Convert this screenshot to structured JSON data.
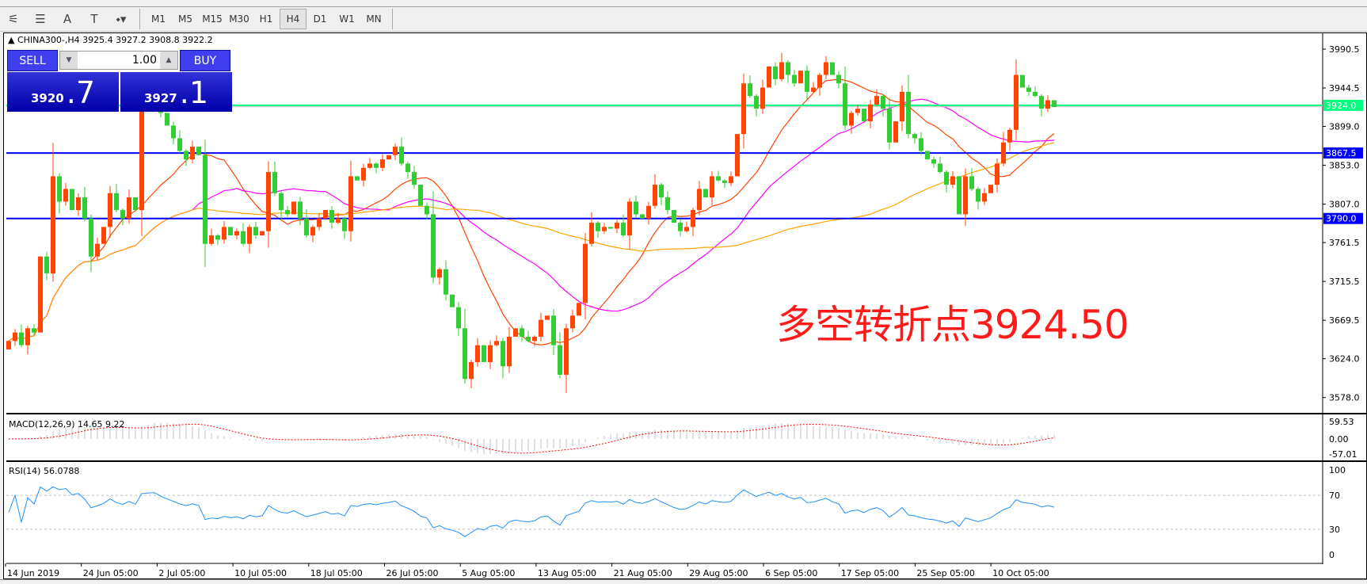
{
  "toolbar": {
    "icons": [
      "elliott-wave-icon",
      "fibonacci-icon",
      "text-icon",
      "text-label-icon",
      "arrows-dropdown-icon"
    ],
    "icon_glyphs": [
      "⚟",
      "☰",
      "A",
      "T",
      "⬩▾"
    ],
    "timeframes": [
      "M1",
      "M5",
      "M15",
      "M30",
      "H1",
      "H4",
      "D1",
      "W1",
      "MN"
    ],
    "active_timeframe": "H4"
  },
  "chart": {
    "header": "▲ CHINA300-,H4  3925.4 3927.2 3908.8 3922.2",
    "annotation": "多空转折点3924.50",
    "colors": {
      "up": "#ff4500",
      "down": "#32cd32",
      "ma_fast": "#ff4500",
      "ma_mid": "#ff00ff",
      "ma_slow": "#ffa500",
      "hline_green": "#00ff7f",
      "hline_blue": "#0000ff",
      "rsi": "#1e90ff",
      "macd_signal": "#ff0000",
      "macd_hist": "#c0c0c0"
    }
  },
  "trade_panel": {
    "sell_label": "SELL",
    "buy_label": "BUY",
    "lot": "1.00",
    "bid_main": "3920",
    "bid_big": ".7",
    "ask_main": "3927",
    "ask_big": ".1"
  },
  "chart_data": {
    "type": "candlestick",
    "symbol": "CHINA300-",
    "timeframe": "H4",
    "closes": [
      3645,
      3655,
      3640,
      3660,
      3655,
      3745,
      3725,
      3840,
      3810,
      3825,
      3800,
      3815,
      3790,
      3745,
      3760,
      3780,
      3820,
      3800,
      3790,
      3815,
      3800,
      3920,
      3930,
      3935,
      3915,
      3900,
      3885,
      3870,
      3860,
      3875,
      3865,
      3760,
      3770,
      3765,
      3780,
      3770,
      3775,
      3760,
      3780,
      3770,
      3775,
      3845,
      3820,
      3800,
      3795,
      3810,
      3790,
      3770,
      3780,
      3790,
      3800,
      3785,
      3790,
      3775,
      3840,
      3835,
      3850,
      3855,
      3850,
      3860,
      3865,
      3875,
      3855,
      3845,
      3830,
      3805,
      3795,
      3720,
      3730,
      3700,
      3685,
      3660,
      3600,
      3620,
      3640,
      3620,
      3640,
      3645,
      3615,
      3650,
      3660,
      3650,
      3645,
      3650,
      3670,
      3675,
      3640,
      3605,
      3660,
      3675,
      3690,
      3760,
      3785,
      3775,
      3780,
      3778,
      3785,
      3770,
      3810,
      3795,
      3790,
      3805,
      3830,
      3815,
      3800,
      3785,
      3775,
      3780,
      3800,
      3825,
      3815,
      3840,
      3835,
      3832,
      3840,
      3890,
      3950,
      3935,
      3920,
      3945,
      3970,
      3955,
      3975,
      3960,
      3950,
      3965,
      3940,
      3945,
      3960,
      3975,
      3960,
      3950,
      3900,
      3915,
      3920,
      3905,
      3925,
      3935,
      3920,
      3880,
      3905,
      3940,
      3890,
      3885,
      3870,
      3860,
      3855,
      3845,
      3830,
      3840,
      3795,
      3840,
      3825,
      3810,
      3820,
      3830,
      3855,
      3880,
      3895,
      3960,
      3945,
      3940,
      3935,
      3920,
      3930,
      3922
    ],
    "price_axis": [
      "3990.5",
      "3944.5",
      "3899.0",
      "3853.0",
      "3807.0",
      "3761.5",
      "3715.5",
      "3669.5",
      "3624.0",
      "3578.0"
    ],
    "price_axis_values": [
      3990.5,
      3944.5,
      3899.0,
      3853.0,
      3807.0,
      3761.5,
      3715.5,
      3669.5,
      3624.0,
      3578.0
    ],
    "hlines": [
      {
        "price": 3924.0,
        "label": "3924.0",
        "color": "#00ff7f"
      },
      {
        "price": 3867.5,
        "label": "3867.5",
        "color": "#0000ff"
      },
      {
        "price": 3790.0,
        "label": "3790.0",
        "color": "#0000ff"
      }
    ],
    "time_axis": [
      "14 Jun 2019",
      "24 Jun 05:00",
      "2 Jul 05:00",
      "10 Jul 05:00",
      "18 Jul 05:00",
      "26 Jul 05:00",
      "5 Aug 05:00",
      "13 Aug 05:00",
      "21 Aug 05:00",
      "29 Aug 05:00",
      "6 Sep 05:00",
      "17 Sep 05:00",
      "25 Sep 05:00",
      "10 Oct 05:00"
    ],
    "macd": {
      "label": "MACD(12,26,9) 14.65 9.22",
      "axis": [
        "59.53",
        "0.00",
        "-57.01"
      ]
    },
    "rsi": {
      "label": "RSI(14) 56.0788",
      "axis": [
        "100",
        "70",
        "30",
        "0"
      ],
      "levels": [
        70,
        30
      ]
    }
  }
}
